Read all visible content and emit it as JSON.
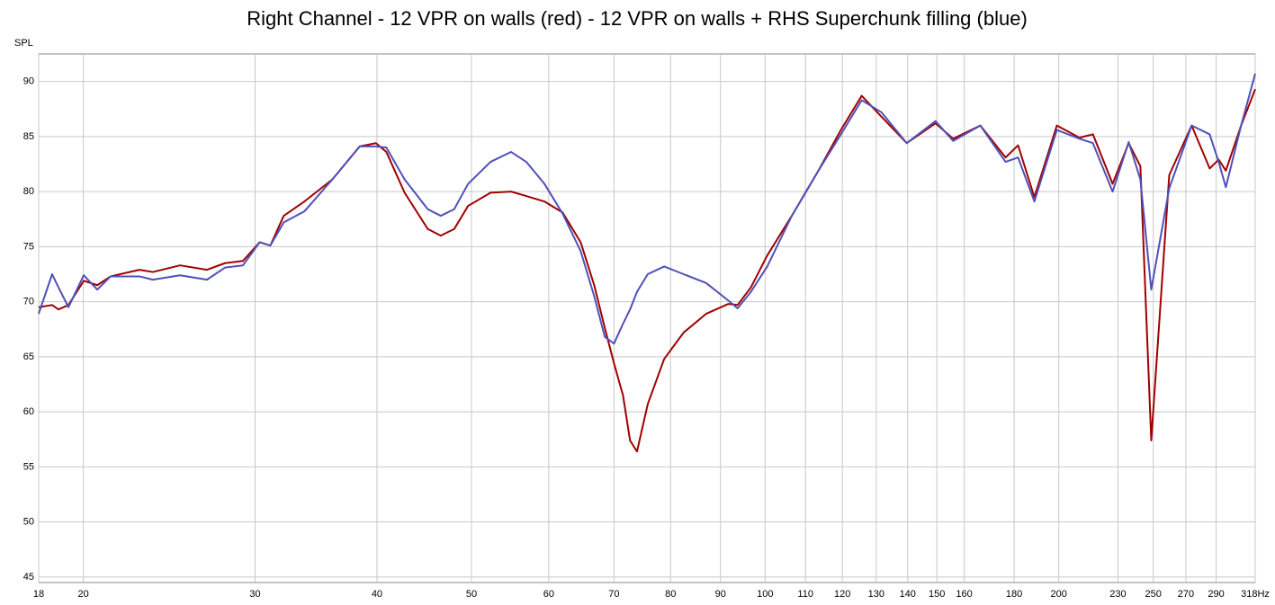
{
  "chart_data": {
    "type": "line",
    "title": "Right Channel - 12 VPR on walls (red) - 12 VPR on walls + RHS Superchunk filling (blue)",
    "y_label": "SPL",
    "xscale": "log",
    "grid": true,
    "xlim": [
      18,
      318
    ],
    "ylim": [
      44.5,
      92.5
    ],
    "xticks": [
      18,
      20,
      30,
      40,
      50,
      60,
      70,
      80,
      90,
      100,
      110,
      120,
      130,
      140,
      150,
      160,
      180,
      200,
      230,
      250,
      270,
      290,
      {
        "value": 318,
        "label": "318Hz"
      }
    ],
    "yticks": [
      45,
      50,
      55,
      60,
      65,
      70,
      75,
      80,
      85,
      90
    ],
    "x": [
      18,
      18.58,
      18.86,
      19.31,
      20.02,
      20.67,
      21.33,
      22.83,
      23.57,
      25.13,
      26.78,
      27.94,
      29.15,
      30.33,
      31.1,
      32.1,
      33.7,
      36.0,
      38.4,
      39.9,
      40.9,
      42.7,
      45.1,
      46.5,
      48.0,
      49.6,
      52.3,
      54.9,
      56.9,
      59.4,
      62.0,
      64.7,
      66.8,
      68.5,
      70.0,
      71.5,
      72.7,
      73.9,
      75.8,
      78.8,
      82.5,
      87.0,
      91.7,
      93.7,
      96.7,
      100.5,
      106.5,
      113.4,
      119.6,
      125.6,
      131.6,
      139.7,
      149.5,
      155.9,
      166.2,
      176.4,
      181.7,
      188.8,
      199.1,
      210.0,
      216.8,
      227.1,
      235.9,
      242.5,
      248.8,
      259.6,
      273.7,
      285.6,
      291.7,
      296.7,
      307.6,
      318
    ],
    "series": [
      {
        "name": "12 VPR on walls",
        "color": "#a00000",
        "values": [
          69.5,
          69.7,
          69.3,
          69.7,
          71.9,
          71.5,
          72.3,
          72.9,
          72.7,
          73.3,
          72.9,
          73.5,
          73.7,
          75.4,
          75.1,
          77.8,
          79.1,
          81.1,
          84.1,
          84.4,
          83.6,
          79.9,
          76.6,
          76.0,
          76.6,
          78.7,
          79.9,
          80.0,
          79.6,
          79.1,
          78.1,
          75.4,
          71.5,
          67.6,
          64.4,
          61.5,
          57.4,
          56.4,
          60.7,
          64.8,
          67.2,
          68.9,
          69.8,
          69.7,
          71.3,
          74.2,
          77.8,
          81.9,
          85.6,
          88.7,
          86.8,
          84.4,
          86.2,
          84.8,
          86.0,
          83.1,
          84.2,
          79.5,
          86.0,
          84.9,
          85.2,
          80.7,
          84.4,
          82.3,
          57.4,
          81.5,
          86.0,
          82.1,
          82.9,
          81.9,
          86.0,
          89.3
        ]
      },
      {
        "name": "12 VPR on walls + RHS Superchunk filling",
        "color": "#5050b8",
        "values": [
          68.9,
          72.5,
          71.3,
          69.5,
          72.4,
          71.1,
          72.3,
          72.3,
          72.0,
          72.4,
          72.0,
          73.1,
          73.3,
          75.4,
          75.1,
          77.2,
          78.2,
          81.1,
          84.1,
          84.1,
          84.0,
          81.1,
          78.4,
          77.8,
          78.4,
          80.7,
          82.7,
          83.6,
          82.7,
          80.7,
          78.0,
          74.6,
          70.5,
          66.8,
          66.2,
          68.0,
          69.3,
          70.9,
          72.5,
          73.2,
          72.5,
          71.7,
          70.1,
          69.4,
          70.9,
          73.2,
          77.8,
          81.9,
          85.2,
          88.3,
          87.2,
          84.4,
          86.4,
          84.6,
          86.0,
          82.7,
          83.1,
          79.1,
          85.6,
          84.8,
          84.4,
          80.0,
          84.5,
          81.1,
          71.1,
          80.3,
          86.0,
          85.2,
          82.7,
          80.4,
          86.0,
          90.7
        ]
      }
    ]
  }
}
